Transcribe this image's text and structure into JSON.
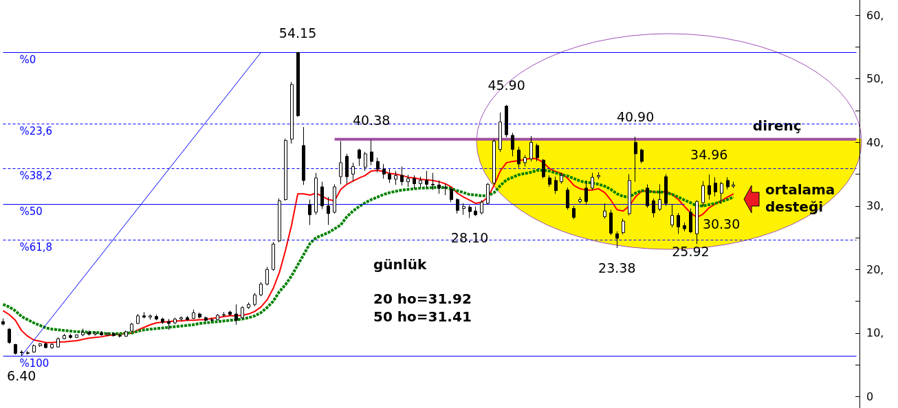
{
  "chart_data": {
    "type": "candlestick",
    "categories": [
      null,
      null,
      null,
      null,
      null,
      null,
      null,
      null,
      null,
      null,
      null,
      null,
      null,
      null,
      null,
      null,
      null,
      null,
      null,
      null,
      null,
      null,
      null,
      null,
      null,
      null,
      null,
      null,
      null,
      null,
      null,
      null,
      null,
      null,
      null,
      null,
      null,
      null,
      null,
      null,
      null,
      null,
      null,
      null,
      null,
      null,
      null,
      null,
      null,
      null,
      null,
      null,
      null,
      null,
      null,
      null,
      null,
      null,
      null,
      null,
      null,
      null,
      null,
      null,
      null,
      null,
      null,
      null,
      null,
      null,
      null,
      null,
      null,
      null,
      null,
      null,
      null,
      null,
      null,
      null,
      null,
      null,
      null,
      null,
      null,
      null,
      null,
      null,
      null,
      null,
      null,
      null,
      null,
      null,
      null,
      null,
      null,
      null,
      null,
      null,
      null,
      null,
      null,
      null,
      null,
      null,
      null,
      null,
      null,
      null,
      null,
      null,
      null,
      null,
      null,
      null,
      null,
      null,
      null,
      null,
      null,
      null,
      null,
      null,
      null,
      null,
      null,
      null,
      null,
      null,
      null,
      null,
      null,
      null,
      null,
      null,
      null,
      null,
      null,
      null
    ],
    "ohlc": [
      [
        11.8,
        12.3,
        11.2,
        11.4
      ],
      [
        10.6,
        10.8,
        8.3,
        8.5
      ],
      [
        8.2,
        8.3,
        6.6,
        6.8
      ],
      [
        6.9,
        7.3,
        6.4,
        7.0
      ],
      [
        6.9,
        7.2,
        6.6,
        6.8
      ],
      [
        7.0,
        8.2,
        6.9,
        8.0
      ],
      [
        8.0,
        8.4,
        7.8,
        8.3
      ],
      [
        8.3,
        8.5,
        7.6,
        7.7
      ],
      [
        7.7,
        8.4,
        7.5,
        8.2
      ],
      [
        7.8,
        9.3,
        7.7,
        9.1
      ],
      [
        9.1,
        9.9,
        9.0,
        9.6
      ],
      [
        9.6,
        9.9,
        9.1,
        9.3
      ],
      [
        9.3,
        9.8,
        9.2,
        9.7
      ],
      [
        9.7,
        10.7,
        9.5,
        10.1
      ],
      [
        10.1,
        10.4,
        9.6,
        9.8
      ],
      [
        9.8,
        10.2,
        9.6,
        10.0
      ],
      [
        10.0,
        10.3,
        9.6,
        9.7
      ],
      [
        9.7,
        10.1,
        9.5,
        9.9
      ],
      [
        9.9,
        10.1,
        9.4,
        9.6
      ],
      [
        9.6,
        9.9,
        9.3,
        9.5
      ],
      [
        9.5,
        10.4,
        9.4,
        10.2
      ],
      [
        10.3,
        11.6,
        10.2,
        11.4
      ],
      [
        11.5,
        13.0,
        11.4,
        12.7
      ],
      [
        12.7,
        13.3,
        12.3,
        12.5
      ],
      [
        12.5,
        12.9,
        12.1,
        12.7
      ],
      [
        12.6,
        12.9,
        12.0,
        12.2
      ],
      [
        12.2,
        12.4,
        11.4,
        11.7
      ],
      [
        11.8,
        12.2,
        10.5,
        11.5
      ],
      [
        11.6,
        12.4,
        11.4,
        12.2
      ],
      [
        12.2,
        12.6,
        11.9,
        12.4
      ],
      [
        12.4,
        12.7,
        11.9,
        12.1
      ],
      [
        12.3,
        13.7,
        12.2,
        13.2
      ],
      [
        13.0,
        13.2,
        12.3,
        12.5
      ],
      [
        12.4,
        12.6,
        11.8,
        12.0
      ],
      [
        12.0,
        12.4,
        11.8,
        12.1
      ],
      [
        12.1,
        13.0,
        12.0,
        12.8
      ],
      [
        12.8,
        13.3,
        12.5,
        12.9
      ],
      [
        13.3,
        13.5,
        12.7,
        12.9
      ],
      [
        13.0,
        14.5,
        11.3,
        12.0
      ],
      [
        12.4,
        14.2,
        12.2,
        14.0
      ],
      [
        14.0,
        14.8,
        13.8,
        14.5
      ],
      [
        14.5,
        16.3,
        14.2,
        16.0
      ],
      [
        16.0,
        18.0,
        15.8,
        17.7
      ],
      [
        17.7,
        20.4,
        17.5,
        20.0
      ],
      [
        20.0,
        24.3,
        19.8,
        24.0
      ],
      [
        24.5,
        31.2,
        24.3,
        30.8
      ],
      [
        31.0,
        40.6,
        30.8,
        40.3
      ],
      [
        40.5,
        49.5,
        39.8,
        49.1
      ],
      [
        54.15,
        54.15,
        44.0,
        44.2
      ],
      [
        39.5,
        42.4,
        33.3,
        34.0
      ],
      [
        30.2,
        31.0,
        27.0,
        28.6
      ],
      [
        29.0,
        35.2,
        28.6,
        34.4
      ],
      [
        33.0,
        33.8,
        29.5,
        30.0
      ],
      [
        30.0,
        31.4,
        27.0,
        28.8
      ],
      [
        29.0,
        33.4,
        28.8,
        33.0
      ],
      [
        34.6,
        40.2,
        33.4,
        36.8
      ],
      [
        37.8,
        38.2,
        33.5,
        34.6
      ],
      [
        35.0,
        36.8,
        33.9,
        36.2
      ],
      [
        38.8,
        39.0,
        36.3,
        37.5
      ],
      [
        36.1,
        38.5,
        35.5,
        38.2
      ],
      [
        38.5,
        40.38,
        36.4,
        37.0
      ],
      [
        37.0,
        37.6,
        35.3,
        35.8
      ],
      [
        35.8,
        36.6,
        34.3,
        35.0
      ],
      [
        35.0,
        35.8,
        33.6,
        34.2
      ],
      [
        34.2,
        35.5,
        33.3,
        34.8
      ],
      [
        34.8,
        36.2,
        33.2,
        33.8
      ],
      [
        33.8,
        34.9,
        33.0,
        34.3
      ],
      [
        34.3,
        34.8,
        32.7,
        33.5
      ],
      [
        33.5,
        34.6,
        33.0,
        34.0
      ],
      [
        34.0,
        35.5,
        32.9,
        33.4
      ],
      [
        33.4,
        35.2,
        32.5,
        33.3
      ],
      [
        33.3,
        34.0,
        31.9,
        32.8
      ],
      [
        32.8,
        33.5,
        31.7,
        32.9
      ],
      [
        32.6,
        32.9,
        30.6,
        31.0
      ],
      [
        31.0,
        31.2,
        28.8,
        29.3
      ],
      [
        29.6,
        30.4,
        28.6,
        29.9
      ],
      [
        29.8,
        30.1,
        28.1,
        29.1
      ],
      [
        29.2,
        29.9,
        28.4,
        28.6
      ],
      [
        28.9,
        30.9,
        28.7,
        30.6
      ],
      [
        30.4,
        33.6,
        30.2,
        33.4
      ],
      [
        33.6,
        40.5,
        33.3,
        40.2
      ],
      [
        38.9,
        44.7,
        38.5,
        43.2
      ],
      [
        45.7,
        45.9,
        40.8,
        41.2
      ],
      [
        41.1,
        41.5,
        37.8,
        38.9
      ],
      [
        38.8,
        39.3,
        36.0,
        36.6
      ],
      [
        36.8,
        38.0,
        36.2,
        37.6
      ],
      [
        37.4,
        41.0,
        37.0,
        40.0
      ],
      [
        39.5,
        39.8,
        37.0,
        37.6
      ],
      [
        37.2,
        37.4,
        34.3,
        34.6
      ],
      [
        34.4,
        34.8,
        33.0,
        33.4
      ],
      [
        34.0,
        34.6,
        31.9,
        32.4
      ],
      [
        33.8,
        35.2,
        33.5,
        34.8
      ],
      [
        32.5,
        32.9,
        29.4,
        29.7
      ],
      [
        29.6,
        30.0,
        27.9,
        28.2
      ],
      [
        30.7,
        31.4,
        30.4,
        31.0
      ],
      [
        32.8,
        34.0,
        30.2,
        30.7
      ],
      [
        32.8,
        35.2,
        32.5,
        34.5
      ],
      [
        34.6,
        35.3,
        34.2,
        34.8
      ],
      [
        28.3,
        30.4,
        28.0,
        29.2
      ],
      [
        28.9,
        29.4,
        25.4,
        25.7
      ],
      [
        25.6,
        26.0,
        23.38,
        24.9
      ],
      [
        25.8,
        28.0,
        25.5,
        27.6
      ],
      [
        28.8,
        35.0,
        28.5,
        34.0
      ],
      [
        40.0,
        40.9,
        33.8,
        38.2
      ],
      [
        38.8,
        39.0,
        36.7,
        37.0
      ],
      [
        32.8,
        33.4,
        29.7,
        30.0
      ],
      [
        30.8,
        31.2,
        28.2,
        28.9
      ],
      [
        29.5,
        33.4,
        29.2,
        31.0
      ],
      [
        34.6,
        35.0,
        30.0,
        30.4
      ],
      [
        27.0,
        30.2,
        26.6,
        28.5
      ],
      [
        28.5,
        28.9,
        25.6,
        26.7
      ],
      [
        26.9,
        27.4,
        26.0,
        26.4
      ],
      [
        29.0,
        29.6,
        25.7,
        25.92
      ],
      [
        25.6,
        30.9,
        24.0,
        30.7
      ],
      [
        30.5,
        33.9,
        29.9,
        33.2
      ],
      [
        33.2,
        34.96,
        31.0,
        31.8
      ],
      [
        33.6,
        34.5,
        31.5,
        32.2
      ],
      [
        32.0,
        33.8,
        30.3,
        33.5
      ],
      [
        34.0,
        34.5,
        32.6,
        33.0
      ],
      [
        33.1,
        33.8,
        32.8,
        33.3
      ],
      null,
      null,
      null,
      null,
      null,
      null,
      null,
      null,
      null,
      null,
      null,
      null,
      null,
      null,
      null,
      null,
      null,
      null,
      null,
      null
    ],
    "series": [
      {
        "type": "line",
        "color": "#ff0000",
        "values": [
          13.5,
          12.9,
          12.0,
          10.4,
          9.5,
          8.9,
          8.7,
          8.5,
          8.5,
          8.6,
          8.6,
          8.7,
          8.8,
          9.0,
          9.2,
          9.3,
          9.4,
          9.6,
          9.7,
          9.8,
          9.9,
          10.0,
          10.5,
          10.9,
          11.3,
          11.6,
          11.7,
          11.8,
          11.9,
          11.9,
          12.0,
          12.0,
          12.1,
          12.1,
          12.3,
          12.4,
          12.6,
          12.7,
          12.7,
          12.8,
          13.0,
          13.4,
          14.1,
          15.2,
          17.0,
          19.5,
          23.0,
          27.0,
          31.9,
          31.9,
          31.7,
          32.0,
          31.5,
          31.0,
          30.8,
          32.6,
          33.4,
          33.9,
          34.4,
          34.8,
          35.5,
          35.6,
          35.4,
          35.1,
          35.0,
          34.8,
          34.5,
          34.4,
          34.2,
          34.1,
          34.0,
          33.8,
          33.5,
          33.0,
          32.0,
          31.4,
          30.9,
          30.4,
          30.6,
          31.4,
          33.3,
          35.5,
          36.8,
          37.0,
          37.1,
          37.3,
          37.5,
          37.4,
          36.8,
          35.9,
          35.4,
          35.1,
          34.3,
          33.2,
          32.7,
          32.5,
          32.5,
          32.7,
          32.1,
          30.9,
          29.4,
          29.2,
          30.0,
          31.4,
          32.3,
          32.4,
          32.2,
          32.1,
          32.3,
          31.8,
          31.0,
          29.9,
          28.9,
          28.2,
          28.7,
          29.7,
          30.3,
          30.8,
          31.4,
          31.92,
          null,
          null,
          null,
          null,
          null,
          null,
          null,
          null,
          null,
          null,
          null,
          null,
          null,
          null,
          null,
          null,
          null,
          null,
          null,
          null
        ]
      },
      {
        "type": "line",
        "color": "#008000",
        "line_style": "dotted",
        "values": [
          14.5,
          14.1,
          13.5,
          12.6,
          12.1,
          11.6,
          11.2,
          10.8,
          10.6,
          10.5,
          10.4,
          10.3,
          10.2,
          10.2,
          10.1,
          10.1,
          10.0,
          9.9,
          9.9,
          9.9,
          10.0,
          10.0,
          10.3,
          10.5,
          10.6,
          10.7,
          10.8,
          10.9,
          11.0,
          11.1,
          11.2,
          11.3,
          11.5,
          11.6,
          11.7,
          11.8,
          11.9,
          12.0,
          12.1,
          12.2,
          12.4,
          12.7,
          13.2,
          14.0,
          15.0,
          16.5,
          17.6,
          19.0,
          20.7,
          22.4,
          24.1,
          25.0,
          25.4,
          25.8,
          26.4,
          27.0,
          28.3,
          29.2,
          29.9,
          30.5,
          31.0,
          31.4,
          31.8,
          32.1,
          32.3,
          32.5,
          32.6,
          32.7,
          32.8,
          32.8,
          32.9,
          32.9,
          32.9,
          32.7,
          32.4,
          32.1,
          31.8,
          31.7,
          31.6,
          31.6,
          32.1,
          33.2,
          34.1,
          34.5,
          34.9,
          35.1,
          35.3,
          35.6,
          35.6,
          35.5,
          35.2,
          34.9,
          34.7,
          34.3,
          33.9,
          33.7,
          33.6,
          33.4,
          33.1,
          32.6,
          31.9,
          31.5,
          31.4,
          32.0,
          32.4,
          32.3,
          32.2,
          32.2,
          32.1,
          31.8,
          31.4,
          30.9,
          30.5,
          30.0,
          30.0,
          30.2,
          30.4,
          30.7,
          31.0,
          31.41,
          null,
          null,
          null,
          null,
          null,
          null,
          null,
          null,
          null,
          null,
          null,
          null,
          null,
          null,
          null,
          null,
          null,
          null,
          null,
          null
        ]
      },
      {
        "type": "line",
        "color": "#0000ff",
        "values": [
          null,
          null,
          null,
          6.4,
          null,
          null,
          null,
          null,
          null,
          null,
          null,
          null,
          null,
          null,
          null,
          null,
          null,
          null,
          null,
          null,
          null,
          null,
          null,
          null,
          null,
          null,
          null,
          null,
          null,
          null,
          null,
          null,
          null,
          null,
          null,
          null,
          null,
          null,
          null,
          null,
          null,
          null,
          54.15,
          null,
          null,
          null,
          null,
          null,
          null,
          null,
          null,
          null,
          null,
          null,
          null,
          null,
          null,
          null,
          null,
          null,
          null,
          null,
          null,
          null,
          null,
          null,
          null,
          null,
          null,
          null,
          null,
          null,
          null,
          null,
          null,
          null,
          null,
          null,
          null,
          null,
          null,
          null,
          null,
          null,
          null,
          null,
          null,
          null,
          null,
          null,
          null,
          null,
          null,
          null,
          null,
          null,
          null,
          null,
          null,
          null,
          null,
          null,
          null,
          null,
          null,
          null,
          null,
          null,
          null,
          null,
          null,
          null,
          null,
          null,
          null,
          null,
          null,
          null,
          null,
          null,
          null,
          null,
          null,
          null,
          null,
          null,
          null,
          null,
          null,
          null,
          null,
          null,
          null,
          null,
          null,
          null,
          null,
          null,
          null,
          null
        ]
      },
      {
        "type": "line",
        "name": "direnç",
        "color": "#a050a0",
        "values": [
          null,
          null,
          null,
          null,
          null,
          null,
          null,
          null,
          null,
          null,
          null,
          null,
          null,
          null,
          null,
          null,
          null,
          null,
          null,
          null,
          null,
          null,
          null,
          null,
          null,
          null,
          null,
          null,
          null,
          null,
          null,
          null,
          null,
          null,
          null,
          null,
          null,
          null,
          null,
          null,
          null,
          null,
          null,
          null,
          null,
          null,
          null,
          null,
          null,
          null,
          null,
          null,
          null,
          null,
          40.5,
          null,
          null,
          null,
          null,
          null,
          null,
          null,
          null,
          null,
          null,
          null,
          null,
          null,
          null,
          null,
          null,
          null,
          null,
          null,
          null,
          null,
          null,
          null,
          null,
          null,
          null,
          null,
          null,
          null,
          null,
          null,
          null,
          null,
          null,
          null,
          null,
          null,
          null,
          null,
          null,
          null,
          null,
          null,
          null,
          null,
          null,
          null,
          null,
          null,
          null,
          null,
          null,
          null,
          null,
          null,
          null,
          null,
          null,
          null,
          null,
          null,
          null,
          null,
          null,
          null,
          null,
          null,
          null,
          null,
          null,
          null,
          null,
          null,
          null,
          null,
          null,
          null,
          null,
          null,
          null,
          null,
          null,
          null,
          null,
          40.5
        ]
      }
    ],
    "ylim": [
      -1.8,
      62.4
    ],
    "yticks": [
      0,
      {
        "value": 5,
        "label": null
      },
      {
        "value": 10,
        "label": "10,"
      },
      {
        "value": 15,
        "label": null
      },
      {
        "value": 20,
        "label": "20,"
      },
      {
        "value": 25,
        "label": null
      },
      {
        "value": 30,
        "label": "30,"
      },
      {
        "value": 35,
        "label": null
      },
      {
        "value": 40,
        "label": "40,"
      },
      {
        "value": 45,
        "label": null
      },
      {
        "value": 50,
        "label": "50,"
      },
      {
        "value": 55,
        "label": null
      },
      {
        "value": 60,
        "label": "60,"
      }
    ],
    "y2lim": [
      117.17,
      -17.28
    ],
    "ref_lines": [
      {
        "axis": "y2",
        "value": 0,
        "label": "%0",
        "color": "#0000ff",
        "line_style": "solid"
      },
      {
        "axis": "y2",
        "value": 23.6,
        "label": "%23,6",
        "color": "#0000ff",
        "line_style": "dashed"
      },
      {
        "axis": "y2",
        "value": 38.2,
        "label": "%38,2",
        "color": "#0000ff",
        "line_style": "dashed"
      },
      {
        "axis": "y2",
        "value": 50,
        "label": "%50",
        "color": "#0000ff",
        "line_style": "solid"
      },
      {
        "axis": "y2",
        "value": 61.8,
        "label": "%61,8",
        "color": "#0000ff",
        "line_style": "dashed"
      },
      {
        "axis": "y2",
        "value": 100,
        "label": "%100",
        "color": "#0000ff",
        "line_style": "solid"
      }
    ],
    "annotations": [
      {
        "text": "54.15",
        "y": 54.15
      },
      {
        "text": "40.38",
        "y": 40.38
      },
      {
        "text": "45.90",
        "y": 45.9
      },
      {
        "text": "40.90",
        "y": 40.9
      },
      {
        "text": "34.96",
        "y": 34.96
      },
      {
        "text": "28.10",
        "y": 28.1
      },
      {
        "text": "23.38",
        "y": 23.38
      },
      {
        "text": "25.92",
        "y": 25.92
      },
      {
        "text": "30.30",
        "y": 30.3
      },
      {
        "text": "6.40",
        "y": 6.4
      },
      "günlük",
      "20 ho=31.92",
      "50 ho=31.41",
      "ortalama desteği"
    ],
    "tick_labels": "y",
    "marker": "none"
  }
}
